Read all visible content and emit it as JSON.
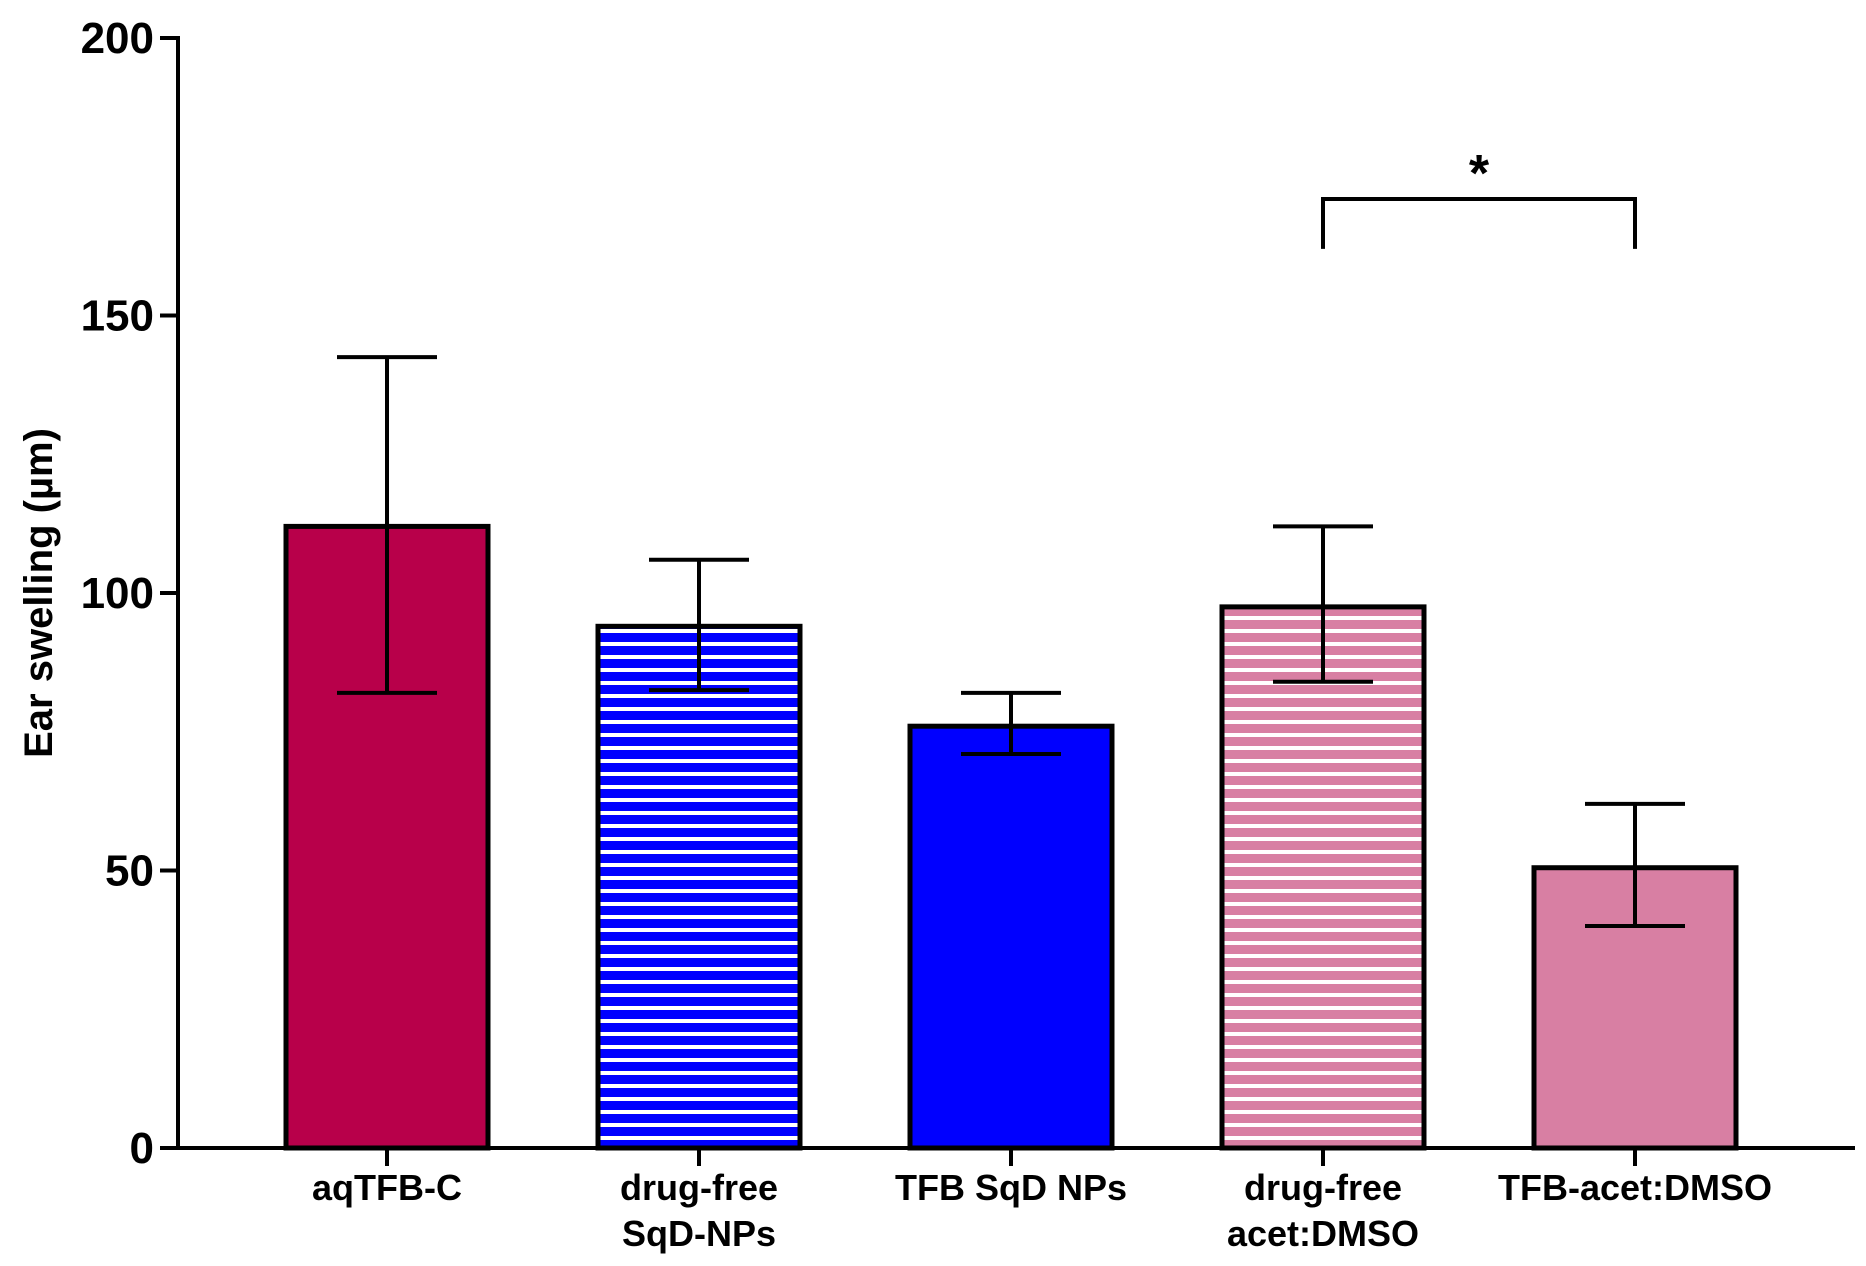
{
  "chart_data": {
    "type": "bar",
    "title": "",
    "xlabel": "",
    "ylabel": "Ear swelling (µm)",
    "ylim": [
      0,
      200
    ],
    "yticks": [
      0,
      50,
      100,
      150,
      200
    ],
    "grid": false,
    "categories": [
      [
        "aqTFB-C"
      ],
      [
        "drug-free",
        "SqD-NPs"
      ],
      [
        "TFB SqD NPs"
      ],
      [
        "drug-free",
        "acet:DMSO"
      ],
      [
        "TFB-acet:DMSO"
      ]
    ],
    "bars": [
      {
        "value": 112,
        "err_low": 82,
        "err_high": 142.5,
        "color": "#b8004a",
        "pattern": "solid"
      },
      {
        "value": 94,
        "err_low": 82.5,
        "err_high": 106,
        "color": "#0000ff",
        "pattern": "striped"
      },
      {
        "value": 76,
        "err_low": 71,
        "err_high": 82,
        "color": "#0000ff",
        "pattern": "solid"
      },
      {
        "value": 97.5,
        "err_low": 84,
        "err_high": 112,
        "color": "#d87fa3",
        "pattern": "striped"
      },
      {
        "value": 50.5,
        "err_low": 40,
        "err_high": 62,
        "color": "#d87fa3",
        "pattern": "solid"
      }
    ],
    "significance": [
      {
        "from": 3,
        "to": 4,
        "label": "*",
        "y": 171,
        "drop_to": 162
      }
    ]
  }
}
